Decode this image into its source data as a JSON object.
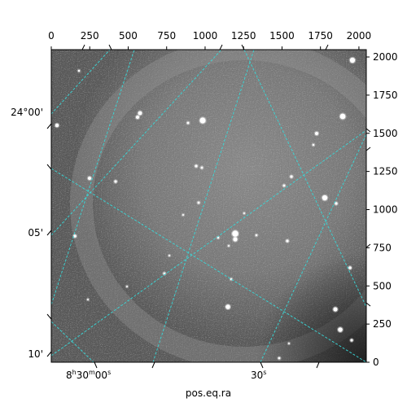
{
  "chart_data": {
    "type": "image",
    "xlabel": "pos.eq.ra",
    "pixel_axes": {
      "x_range": [
        0,
        2048
      ],
      "y_range": [
        0,
        2048
      ],
      "x_ticks": [
        0,
        250,
        500,
        750,
        1000,
        1250,
        1500,
        1750,
        2000
      ],
      "y_ticks": [
        0,
        250,
        500,
        750,
        1000,
        1250,
        1500,
        1750,
        2000
      ]
    },
    "world_axes": {
      "ra_tick_labels": [
        {
          "h": "8",
          "m": "30",
          "s": "00",
          "display": "8h30m00s"
        },
        {
          "s": "30",
          "display": "30s"
        }
      ],
      "dec_tick_labels": [
        "24°00'",
        "05'",
        "10'"
      ]
    },
    "grid": true,
    "grid_color": "#39d6d6",
    "colormap": "gray"
  },
  "labels": {
    "ra0_h": "8",
    "ra0_hu": "h",
    "ra0_m": "30",
    "ra0_mu": "m",
    "ra0_s": "00",
    "ra0_su": "s",
    "ra1_s": "30",
    "ra1_su": "s",
    "dec0": "24°00'",
    "dec1": "05'",
    "dec2": "10'",
    "xlabel": "pos.eq.ra"
  }
}
